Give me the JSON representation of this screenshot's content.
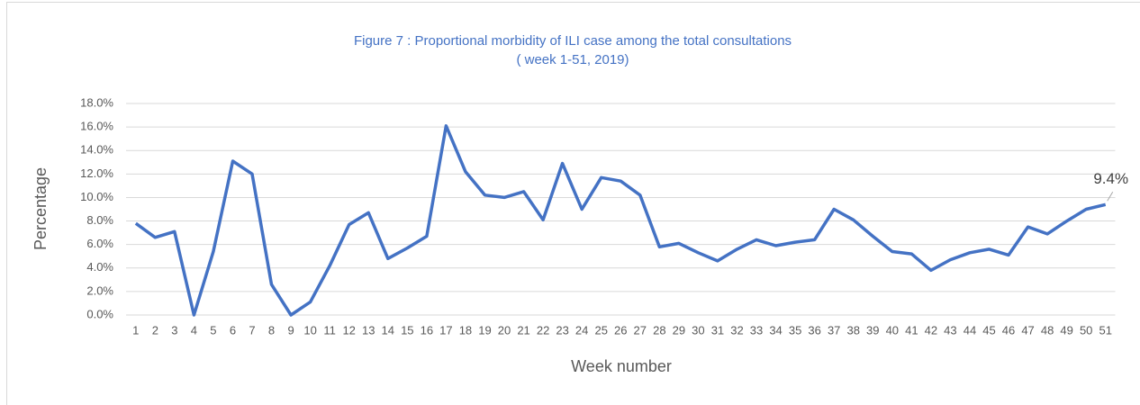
{
  "chart_data": {
    "type": "line",
    "title": "Figure 7 : Proportional morbidity  of ILI case among the total consultations",
    "subtitle": "( week 1-51, 2019)",
    "x_label": "Week number",
    "y_label": "Percentage",
    "categories": [
      "1",
      "2",
      "3",
      "4",
      "5",
      "6",
      "7",
      "8",
      "9",
      "10",
      "11",
      "12",
      "13",
      "14",
      "15",
      "16",
      "17",
      "18",
      "19",
      "20",
      "21",
      "22",
      "23",
      "24",
      "25",
      "26",
      "27",
      "28",
      "29",
      "30",
      "31",
      "32",
      "33",
      "34",
      "35",
      "36",
      "37",
      "38",
      "39",
      "40",
      "41",
      "42",
      "43",
      "44",
      "45",
      "46",
      "47",
      "48",
      "49",
      "50",
      "51"
    ],
    "series": [
      {
        "name": "Percentage",
        "color": "#4472c4",
        "values": [
          7.8,
          6.6,
          7.1,
          0,
          5.4,
          13.1,
          12.0,
          2.6,
          0,
          1.1,
          4.2,
          7.7,
          8.7,
          4.8,
          5.7,
          6.7,
          16.1,
          12.2,
          10.2,
          10.0,
          10.5,
          8.1,
          12.9,
          9.0,
          11.7,
          11.4,
          10.2,
          5.8,
          6.1,
          5.3,
          4.6,
          5.6,
          6.4,
          5.9,
          6.2,
          6.4,
          9.0,
          8.1,
          6.7,
          5.4,
          5.2,
          3.8,
          4.7,
          5.3,
          5.6,
          5.1,
          7.5,
          6.9,
          8.0,
          9.0,
          9.4
        ],
        "value_labels": [
          null,
          null,
          null,
          null,
          null,
          null,
          null,
          null,
          null,
          null,
          null,
          null,
          null,
          null,
          null,
          null,
          null,
          null,
          null,
          null,
          null,
          null,
          null,
          null,
          null,
          null,
          null,
          null,
          null,
          null,
          null,
          null,
          null,
          null,
          null,
          null,
          null,
          null,
          null,
          null,
          null,
          null,
          null,
          null,
          null,
          null,
          null,
          null,
          null,
          null,
          "9.4%"
        ]
      }
    ],
    "ylim": [
      0,
      18
    ],
    "yticks": [
      {
        "value": 0,
        "label": "0.0%"
      },
      {
        "value": 2,
        "label": "2.0%"
      },
      {
        "value": 4,
        "label": "4.0%"
      },
      {
        "value": 6,
        "label": "6.0%"
      },
      {
        "value": 8,
        "label": "8.0%"
      },
      {
        "value": 10,
        "label": "10.0%"
      },
      {
        "value": 12,
        "label": "12.0%"
      },
      {
        "value": 14,
        "label": "14.0%"
      },
      {
        "value": 16,
        "label": "16.0%"
      },
      {
        "value": 18,
        "label": "18.0%"
      }
    ],
    "grid": true
  }
}
